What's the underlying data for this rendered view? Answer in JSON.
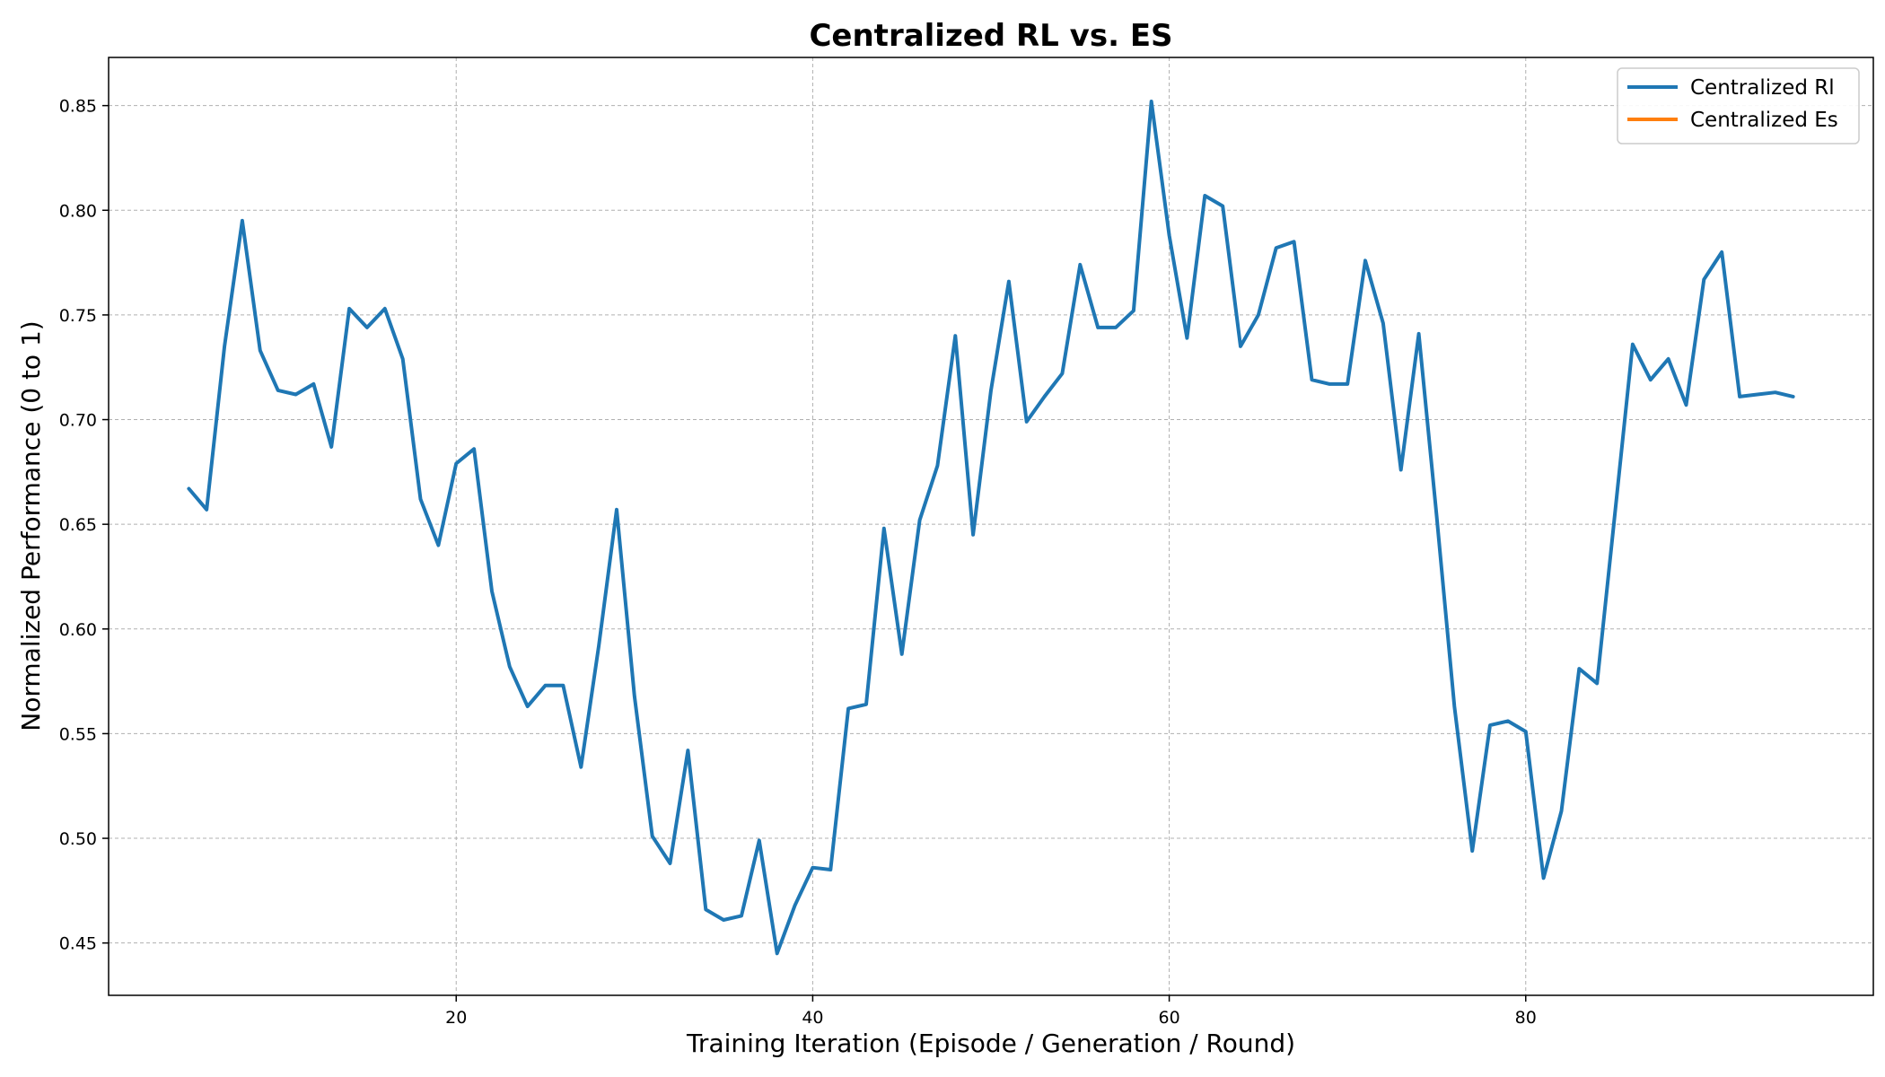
{
  "chart_data": {
    "type": "line",
    "title": "Centralized RL vs. ES",
    "xlabel": "Training Iteration (Episode / Generation / Round)",
    "ylabel": "Normalized Performance (0 to 1)",
    "xlim": [
      0.5,
      99.5
    ],
    "ylim": [
      0.425,
      0.873
    ],
    "x_ticks": [
      20,
      40,
      60,
      80
    ],
    "y_ticks": [
      0.45,
      0.5,
      0.55,
      0.6,
      0.65,
      0.7,
      0.75,
      0.8,
      0.85
    ],
    "y_tick_labels": [
      "0.45",
      "0.50",
      "0.55",
      "0.60",
      "0.65",
      "0.70",
      "0.75",
      "0.80",
      "0.85"
    ],
    "grid": true,
    "legend_position": "top-right",
    "series": [
      {
        "name": "Centralized Rl",
        "color": "#1f77b4",
        "x": [
          5,
          6,
          7,
          8,
          9,
          10,
          11,
          12,
          13,
          14,
          15,
          16,
          17,
          18,
          19,
          20,
          21,
          22,
          23,
          24,
          25,
          26,
          27,
          28,
          29,
          30,
          31,
          32,
          33,
          34,
          35,
          36,
          37,
          38,
          39,
          40,
          41,
          42,
          43,
          44,
          45,
          46,
          47,
          48,
          49,
          50,
          51,
          52,
          53,
          54,
          55,
          56,
          57,
          58,
          59,
          60,
          61,
          62,
          63,
          64,
          65,
          66,
          67,
          68,
          69,
          70,
          71,
          72,
          73,
          74,
          75,
          76,
          77,
          78,
          79,
          80,
          81,
          82,
          83,
          84,
          85,
          86,
          87,
          88,
          89,
          90,
          91,
          92,
          93,
          94,
          95
        ],
        "y": [
          0.667,
          0.657,
          0.735,
          0.795,
          0.733,
          0.714,
          0.712,
          0.717,
          0.687,
          0.753,
          0.744,
          0.753,
          0.729,
          0.662,
          0.64,
          0.679,
          0.686,
          0.618,
          0.582,
          0.563,
          0.573,
          0.573,
          0.534,
          0.592,
          0.657,
          0.568,
          0.501,
          0.488,
          0.542,
          0.466,
          0.461,
          0.463,
          0.499,
          0.445,
          0.468,
          0.486,
          0.485,
          0.562,
          0.564,
          0.648,
          0.588,
          0.652,
          0.678,
          0.74,
          0.645,
          0.714,
          0.766,
          0.699,
          0.711,
          0.722,
          0.774,
          0.744,
          0.744,
          0.752,
          0.852,
          0.788,
          0.739,
          0.807,
          0.802,
          0.735,
          0.75,
          0.782,
          0.785,
          0.719,
          0.717,
          0.717,
          0.776,
          0.746,
          0.676,
          0.741,
          0.654,
          0.563,
          0.494,
          0.554,
          0.556,
          0.551,
          0.481,
          0.513,
          0.581,
          0.574,
          0.655,
          0.736,
          0.719,
          0.729,
          0.707,
          0.767,
          0.78,
          0.711,
          0.712,
          0.713,
          0.711
        ]
      },
      {
        "name": "Centralized Es",
        "color": "#ff7f0e",
        "x": [],
        "y": []
      }
    ]
  }
}
